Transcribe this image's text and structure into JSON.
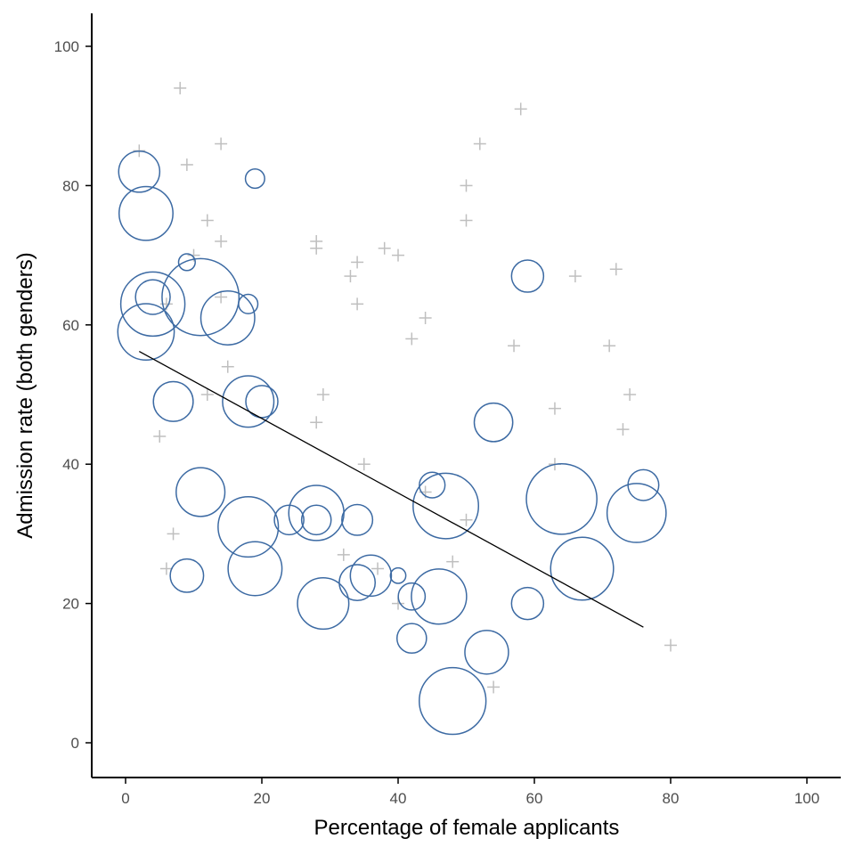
{
  "chart_data": {
    "type": "scatter",
    "title": "",
    "xlabel": "Percentage of female applicants",
    "ylabel": "Admission rate (both genders)",
    "xlim": [
      -5,
      105
    ],
    "ylim": [
      -5,
      105
    ],
    "xticks": [
      0,
      20,
      40,
      60,
      80,
      100
    ],
    "yticks": [
      0,
      20,
      40,
      60,
      80,
      100
    ],
    "grid": false,
    "colors": {
      "circle": "#3c6aa3",
      "cross": "#bfbfbf",
      "line": "#000000",
      "axis": "#000000"
    },
    "series": [
      {
        "marker": "circle",
        "points": [
          {
            "x": 2,
            "y": 82,
            "size": 3.2
          },
          {
            "x": 3,
            "y": 76,
            "size": 4.2
          },
          {
            "x": 4,
            "y": 64,
            "size": 2.7
          },
          {
            "x": 4,
            "y": 63,
            "size": 5.0
          },
          {
            "x": 3,
            "y": 59,
            "size": 4.4
          },
          {
            "x": 9,
            "y": 69,
            "size": 1.3
          },
          {
            "x": 11,
            "y": 64,
            "size": 6.0
          },
          {
            "x": 15,
            "y": 61,
            "size": 4.2
          },
          {
            "x": 18,
            "y": 63,
            "size": 1.5
          },
          {
            "x": 19,
            "y": 81,
            "size": 1.5
          },
          {
            "x": 7,
            "y": 49,
            "size": 3.1
          },
          {
            "x": 18,
            "y": 49,
            "size": 4.0
          },
          {
            "x": 20,
            "y": 49,
            "size": 2.5
          },
          {
            "x": 11,
            "y": 36,
            "size": 3.8
          },
          {
            "x": 18,
            "y": 31,
            "size": 4.7
          },
          {
            "x": 24,
            "y": 32,
            "size": 2.3
          },
          {
            "x": 28,
            "y": 33,
            "size": 4.3
          },
          {
            "x": 28,
            "y": 32,
            "size": 2.3
          },
          {
            "x": 34,
            "y": 32,
            "size": 2.4
          },
          {
            "x": 9,
            "y": 24,
            "size": 2.6
          },
          {
            "x": 19,
            "y": 25,
            "size": 4.2
          },
          {
            "x": 29,
            "y": 20,
            "size": 4.0
          },
          {
            "x": 34,
            "y": 23,
            "size": 2.8
          },
          {
            "x": 36,
            "y": 24,
            "size": 3.2
          },
          {
            "x": 40,
            "y": 24,
            "size": 1.2
          },
          {
            "x": 42,
            "y": 21,
            "size": 2.1
          },
          {
            "x": 42,
            "y": 15,
            "size": 2.3
          },
          {
            "x": 45,
            "y": 37,
            "size": 2.0
          },
          {
            "x": 46,
            "y": 21,
            "size": 4.3
          },
          {
            "x": 47,
            "y": 34,
            "size": 5.1
          },
          {
            "x": 48,
            "y": 6,
            "size": 5.2
          },
          {
            "x": 53,
            "y": 13,
            "size": 3.4
          },
          {
            "x": 54,
            "y": 46,
            "size": 3.0
          },
          {
            "x": 59,
            "y": 67,
            "size": 2.5
          },
          {
            "x": 59,
            "y": 20,
            "size": 2.5
          },
          {
            "x": 64,
            "y": 35,
            "size": 5.5
          },
          {
            "x": 67,
            "y": 25,
            "size": 4.9
          },
          {
            "x": 75,
            "y": 33,
            "size": 4.6
          },
          {
            "x": 76,
            "y": 37,
            "size": 2.4
          }
        ]
      },
      {
        "marker": "cross",
        "points": [
          {
            "x": 2,
            "y": 85
          },
          {
            "x": 8,
            "y": 94
          },
          {
            "x": 9,
            "y": 83
          },
          {
            "x": 14,
            "y": 86
          },
          {
            "x": 12,
            "y": 75
          },
          {
            "x": 14,
            "y": 72
          },
          {
            "x": 10,
            "y": 70
          },
          {
            "x": 14,
            "y": 64
          },
          {
            "x": 6,
            "y": 63
          },
          {
            "x": 15,
            "y": 54
          },
          {
            "x": 12,
            "y": 50
          },
          {
            "x": 5,
            "y": 44
          },
          {
            "x": 7,
            "y": 30
          },
          {
            "x": 6,
            "y": 25
          },
          {
            "x": 28,
            "y": 72
          },
          {
            "x": 28,
            "y": 71
          },
          {
            "x": 34,
            "y": 69
          },
          {
            "x": 33,
            "y": 67
          },
          {
            "x": 34,
            "y": 63
          },
          {
            "x": 38,
            "y": 71
          },
          {
            "x": 40,
            "y": 70
          },
          {
            "x": 44,
            "y": 61
          },
          {
            "x": 42,
            "y": 58
          },
          {
            "x": 29,
            "y": 50
          },
          {
            "x": 28,
            "y": 46
          },
          {
            "x": 35,
            "y": 40
          },
          {
            "x": 32,
            "y": 27
          },
          {
            "x": 37,
            "y": 25
          },
          {
            "x": 40,
            "y": 20
          },
          {
            "x": 44,
            "y": 36
          },
          {
            "x": 50,
            "y": 32
          },
          {
            "x": 48,
            "y": 26
          },
          {
            "x": 50,
            "y": 80
          },
          {
            "x": 52,
            "y": 86
          },
          {
            "x": 50,
            "y": 75
          },
          {
            "x": 58,
            "y": 91
          },
          {
            "x": 57,
            "y": 57
          },
          {
            "x": 66,
            "y": 67
          },
          {
            "x": 72,
            "y": 68
          },
          {
            "x": 71,
            "y": 57
          },
          {
            "x": 74,
            "y": 50
          },
          {
            "x": 63,
            "y": 48
          },
          {
            "x": 73,
            "y": 45
          },
          {
            "x": 63,
            "y": 40
          },
          {
            "x": 54,
            "y": 8
          },
          {
            "x": 80,
            "y": 14
          }
        ]
      }
    ],
    "trend_line": {
      "x": [
        2,
        76
      ],
      "y": [
        56.2,
        16.6
      ]
    }
  }
}
